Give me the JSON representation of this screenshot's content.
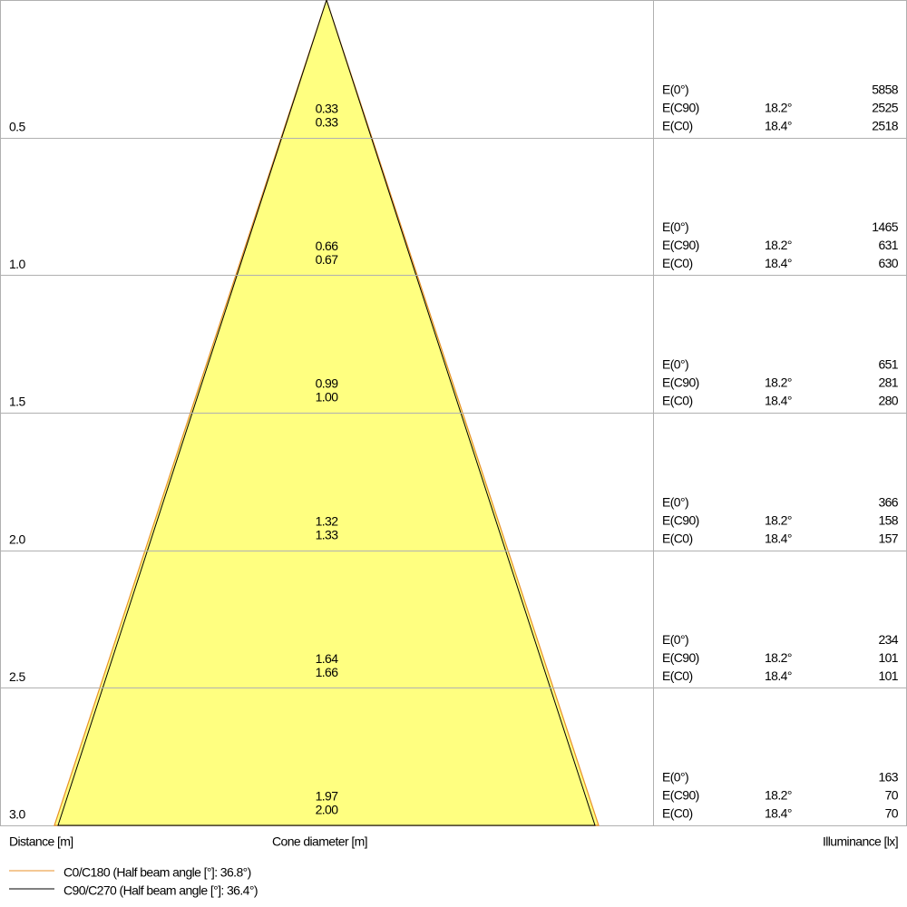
{
  "rows": [
    {
      "distance": "0.5",
      "cone_diameters": [
        "0.33",
        "0.33"
      ],
      "illuminance": [
        {
          "label": "E(0°)",
          "value": "5858"
        },
        {
          "label": "E(C90)",
          "angle": "18.2°",
          "value": "2525"
        },
        {
          "label": "E(C0)",
          "angle": "18.4°",
          "value": "2518"
        }
      ]
    },
    {
      "distance": "1.0",
      "cone_diameters": [
        "0.66",
        "0.67"
      ],
      "illuminance": [
        {
          "label": "E(0°)",
          "value": "1465"
        },
        {
          "label": "E(C90)",
          "angle": "18.2°",
          "value": "631"
        },
        {
          "label": "E(C0)",
          "angle": "18.4°",
          "value": "630"
        }
      ]
    },
    {
      "distance": "1.5",
      "cone_diameters": [
        "0.99",
        "1.00"
      ],
      "illuminance": [
        {
          "label": "E(0°)",
          "value": "651"
        },
        {
          "label": "E(C90)",
          "angle": "18.2°",
          "value": "281"
        },
        {
          "label": "E(C0)",
          "angle": "18.4°",
          "value": "280"
        }
      ]
    },
    {
      "distance": "2.0",
      "cone_diameters": [
        "1.32",
        "1.33"
      ],
      "illuminance": [
        {
          "label": "E(0°)",
          "value": "366"
        },
        {
          "label": "E(C90)",
          "angle": "18.2°",
          "value": "158"
        },
        {
          "label": "E(C0)",
          "angle": "18.4°",
          "value": "157"
        }
      ]
    },
    {
      "distance": "2.5",
      "cone_diameters": [
        "1.64",
        "1.66"
      ],
      "illuminance": [
        {
          "label": "E(0°)",
          "value": "234"
        },
        {
          "label": "E(C90)",
          "angle": "18.2°",
          "value": "101"
        },
        {
          "label": "E(C0)",
          "angle": "18.4°",
          "value": "101"
        }
      ]
    },
    {
      "distance": "3.0",
      "cone_diameters": [
        "1.97",
        "2.00"
      ],
      "illuminance": [
        {
          "label": "E(0°)",
          "value": "163"
        },
        {
          "label": "E(C90)",
          "angle": "18.2°",
          "value": "70"
        },
        {
          "label": "E(C0)",
          "angle": "18.4°",
          "value": "70"
        }
      ]
    }
  ],
  "footer": {
    "distance_label": "Distance [m]",
    "cone_label": "Cone diameter [m]",
    "illuminance_label": "Illuminance [lx]"
  },
  "legend": [
    {
      "text": "C0/C180 (Half beam angle [°]: 36.8°)",
      "color": "#e8902a"
    },
    {
      "text": "C90/C270 (Half beam angle [°]: 36.4°)",
      "color": "#000000"
    }
  ]
}
